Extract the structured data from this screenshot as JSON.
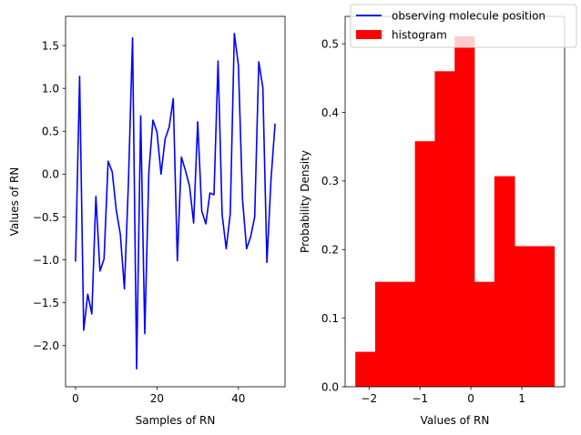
{
  "chart_data": [
    {
      "type": "line",
      "xlabel": "Samples of RN",
      "ylabel": "Values of RN",
      "xlim": [
        -2.45,
        51.45
      ],
      "ylim": [
        -2.48,
        1.84
      ],
      "xticks": [
        0,
        20,
        40
      ],
      "yticks": [
        -2.0,
        -1.5,
        -1.0,
        -0.5,
        0.0,
        0.5,
        1.0,
        1.5
      ],
      "xtick_labels": [
        "0",
        "20",
        "40"
      ],
      "ytick_labels": [
        "−2.0",
        "−1.5",
        "−1.0",
        "−0.5",
        "0.0",
        "0.5",
        "1.0",
        "1.5"
      ],
      "series": [
        {
          "name": "observing molecule position",
          "color": "#0000ff",
          "x": [
            0,
            1,
            2,
            3,
            4,
            5,
            6,
            7,
            8,
            9,
            10,
            11,
            12,
            13,
            14,
            15,
            16,
            17,
            18,
            19,
            20,
            21,
            22,
            23,
            24,
            25,
            26,
            27,
            28,
            29,
            30,
            31,
            32,
            33,
            34,
            35,
            36,
            37,
            38,
            39,
            40,
            41,
            42,
            43,
            44,
            45,
            46,
            47,
            48,
            49
          ],
          "values": [
            -1.02,
            1.14,
            -1.82,
            -1.4,
            -1.63,
            -0.26,
            -1.13,
            -0.99,
            0.15,
            0.03,
            -0.42,
            -0.7,
            -1.34,
            -0.08,
            1.59,
            -2.27,
            0.68,
            -1.86,
            0.02,
            0.63,
            0.49,
            0.0,
            0.41,
            0.55,
            0.88,
            -1.01,
            0.2,
            0.04,
            -0.14,
            -0.57,
            0.61,
            -0.43,
            -0.58,
            -0.22,
            -0.24,
            1.32,
            -0.47,
            -0.87,
            -0.46,
            1.64,
            1.27,
            -0.29,
            -0.87,
            -0.73,
            -0.5,
            1.31,
            1.01,
            -1.03,
            -0.07,
            0.59
          ]
        }
      ]
    },
    {
      "type": "bar",
      "xlabel": "Values of RN",
      "ylabel": "Probability Density",
      "xlim": [
        -2.47,
        1.84
      ],
      "ylim": [
        0.0,
        0.54
      ],
      "xticks": [
        -2,
        -1,
        0,
        1
      ],
      "yticks": [
        0.0,
        0.1,
        0.2,
        0.3,
        0.4,
        0.5
      ],
      "xtick_labels": [
        "−2",
        "−1",
        "0",
        "1"
      ],
      "ytick_labels": [
        "0.0",
        "0.1",
        "0.2",
        "0.3",
        "0.4",
        "0.5"
      ],
      "series": [
        {
          "name": "histogram",
          "color": "#ff0000",
          "bin_edges": [
            -2.27,
            -1.88,
            -1.49,
            -1.1,
            -0.71,
            -0.32,
            0.07,
            0.46,
            0.86,
            1.25,
            1.64
          ],
          "values": [
            0.051,
            0.153,
            0.153,
            0.358,
            0.46,
            0.511,
            0.153,
            0.307,
            0.205,
            0.205
          ]
        }
      ]
    }
  ],
  "legend": {
    "placement": "top-right",
    "entries": [
      {
        "label": "observing molecule position",
        "color": "#0000ff",
        "kind": "line"
      },
      {
        "label": "histogram",
        "color": "#ff0000",
        "kind": "patch"
      }
    ]
  }
}
